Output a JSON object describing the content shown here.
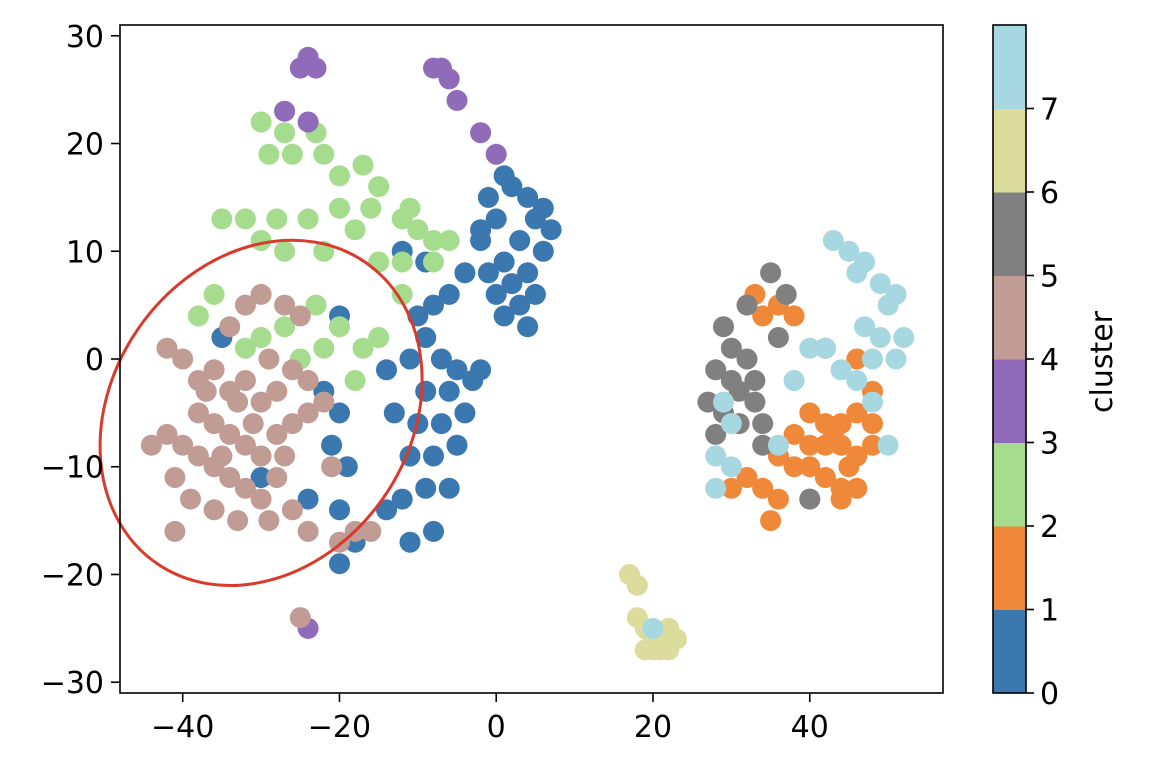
{
  "chart_data": {
    "type": "scatter",
    "xlim": [
      -48,
      57
    ],
    "ylim": [
      -31,
      31
    ],
    "x_ticks": [
      -40,
      -20,
      0,
      20,
      40
    ],
    "y_ticks": [
      -30,
      -20,
      -10,
      0,
      10,
      20,
      30
    ],
    "x_tick_labels": [
      "−40",
      "−20",
      "0",
      "20",
      "40"
    ],
    "y_tick_labels": [
      "−30",
      "−20",
      "−10",
      "0",
      "10",
      "20",
      "30"
    ],
    "grid": false,
    "colorbar": {
      "label": "cluster",
      "range": [
        0,
        8
      ],
      "ticks": [
        0,
        1,
        2,
        3,
        4,
        5,
        6,
        7
      ],
      "tick_labels": [
        "0",
        "1",
        "2",
        "3",
        "4",
        "5",
        "6",
        "7"
      ],
      "colors": [
        "#3a78af",
        "#f0883a",
        "#a5dc8e",
        "#8f6bb9",
        "#c09c94",
        "#808080",
        "#dcdc9c",
        "#a7d8e2"
      ]
    },
    "annotation": {
      "shape": "ellipse",
      "color": "#d93a2b",
      "center": [
        -30,
        -5
      ],
      "radius": [
        19,
        17
      ]
    },
    "series": [
      {
        "cluster": 0,
        "points": [
          [
            -1,
            15
          ],
          [
            2,
            16
          ],
          [
            4,
            15
          ],
          [
            6,
            14
          ],
          [
            7,
            12
          ],
          [
            0,
            13
          ],
          [
            -2,
            12
          ],
          [
            3,
            11
          ],
          [
            6,
            10
          ],
          [
            1,
            9
          ],
          [
            -1,
            8
          ],
          [
            4,
            8
          ],
          [
            2,
            7
          ],
          [
            5,
            6
          ],
          [
            0,
            6
          ],
          [
            3,
            5
          ],
          [
            1,
            4
          ],
          [
            4,
            3
          ],
          [
            -4,
            8
          ],
          [
            -6,
            6
          ],
          [
            -8,
            5
          ],
          [
            -10,
            4
          ],
          [
            -9,
            2
          ],
          [
            -11,
            0
          ],
          [
            -7,
            0
          ],
          [
            -5,
            -1
          ],
          [
            -3,
            -2
          ],
          [
            -6,
            -3
          ],
          [
            -9,
            -3
          ],
          [
            -4,
            -5
          ],
          [
            -7,
            -6
          ],
          [
            -10,
            -6
          ],
          [
            -13,
            -5
          ],
          [
            -5,
            -8
          ],
          [
            -8,
            -9
          ],
          [
            -11,
            -9
          ],
          [
            -6,
            -12
          ],
          [
            -9,
            -12
          ],
          [
            -12,
            -13
          ],
          [
            -8,
            -16
          ],
          [
            -11,
            -17
          ],
          [
            -14,
            -14
          ],
          [
            -21,
            -8
          ],
          [
            -19,
            -10
          ],
          [
            -20,
            -14
          ],
          [
            -18,
            -17
          ],
          [
            -20,
            -19
          ],
          [
            -24,
            -13
          ],
          [
            -22,
            -3
          ],
          [
            -20,
            -5
          ],
          [
            -35,
            2
          ],
          [
            -30,
            -11
          ],
          [
            -20,
            4
          ],
          [
            -12,
            10
          ],
          [
            -9,
            9
          ],
          [
            -2,
            11
          ],
          [
            5,
            13
          ],
          [
            1,
            17
          ],
          [
            -2,
            -1
          ],
          [
            -14,
            -1
          ]
        ]
      },
      {
        "cluster": 1,
        "points": [
          [
            33,
            6
          ],
          [
            36,
            5
          ],
          [
            34,
            4
          ],
          [
            38,
            4
          ],
          [
            40,
            -5
          ],
          [
            42,
            -6
          ],
          [
            44,
            -6
          ],
          [
            46,
            -5
          ],
          [
            48,
            -6
          ],
          [
            38,
            -7
          ],
          [
            40,
            -8
          ],
          [
            42,
            -8
          ],
          [
            44,
            -8
          ],
          [
            46,
            -9
          ],
          [
            48,
            -8
          ],
          [
            36,
            -9
          ],
          [
            38,
            -10
          ],
          [
            40,
            -10
          ],
          [
            42,
            -11
          ],
          [
            44,
            -12
          ],
          [
            46,
            -12
          ],
          [
            34,
            -12
          ],
          [
            36,
            -13
          ],
          [
            40,
            -13
          ],
          [
            44,
            -13
          ],
          [
            30,
            -12
          ],
          [
            32,
            -11
          ],
          [
            35,
            -15
          ],
          [
            46,
            0
          ],
          [
            48,
            -3
          ],
          [
            43,
            -7
          ],
          [
            45,
            -10
          ]
        ]
      },
      {
        "cluster": 2,
        "points": [
          [
            -30,
            22
          ],
          [
            -27,
            21
          ],
          [
            -23,
            21
          ],
          [
            -26,
            19
          ],
          [
            -22,
            19
          ],
          [
            -29,
            19
          ],
          [
            -20,
            17
          ],
          [
            -17,
            18
          ],
          [
            -15,
            16
          ],
          [
            -16,
            14
          ],
          [
            -20,
            14
          ],
          [
            -24,
            13
          ],
          [
            -28,
            13
          ],
          [
            -32,
            13
          ],
          [
            -35,
            13
          ],
          [
            -30,
            11
          ],
          [
            -27,
            10
          ],
          [
            -22,
            10
          ],
          [
            -18,
            12
          ],
          [
            -12,
            13
          ],
          [
            -10,
            12
          ],
          [
            -8,
            11
          ],
          [
            -6,
            11
          ],
          [
            -12,
            9
          ],
          [
            -15,
            9
          ],
          [
            -8,
            9
          ],
          [
            -36,
            6
          ],
          [
            -38,
            4
          ],
          [
            -30,
            2
          ],
          [
            -32,
            1
          ],
          [
            -27,
            3
          ],
          [
            -23,
            5
          ],
          [
            -20,
            3
          ],
          [
            -17,
            1
          ],
          [
            -15,
            2
          ],
          [
            -18,
            -2
          ],
          [
            -25,
            0
          ],
          [
            -22,
            1
          ],
          [
            -12,
            6
          ],
          [
            -11,
            14
          ]
        ]
      },
      {
        "cluster": 3,
        "points": [
          [
            -24,
            28
          ],
          [
            -23,
            27
          ],
          [
            -25,
            27
          ],
          [
            -7,
            27
          ],
          [
            -6,
            26
          ],
          [
            -5,
            24
          ],
          [
            -2,
            21
          ],
          [
            0,
            19
          ],
          [
            -27,
            23
          ],
          [
            -24,
            22
          ],
          [
            -24,
            -25
          ],
          [
            -8,
            27
          ]
        ]
      },
      {
        "cluster": 4,
        "points": [
          [
            -40,
            0
          ],
          [
            -38,
            -2
          ],
          [
            -36,
            -1
          ],
          [
            -34,
            -3
          ],
          [
            -32,
            -2
          ],
          [
            -30,
            -4
          ],
          [
            -28,
            -3
          ],
          [
            -26,
            -1
          ],
          [
            -24,
            -2
          ],
          [
            -38,
            -5
          ],
          [
            -36,
            -6
          ],
          [
            -34,
            -7
          ],
          [
            -32,
            -8
          ],
          [
            -30,
            -9
          ],
          [
            -28,
            -7
          ],
          [
            -26,
            -6
          ],
          [
            -24,
            -5
          ],
          [
            -22,
            -4
          ],
          [
            -40,
            -8
          ],
          [
            -38,
            -9
          ],
          [
            -36,
            -10
          ],
          [
            -34,
            -11
          ],
          [
            -32,
            -12
          ],
          [
            -30,
            -13
          ],
          [
            -28,
            -11
          ],
          [
            -42,
            -7
          ],
          [
            -44,
            -8
          ],
          [
            -41,
            -11
          ],
          [
            -39,
            -13
          ],
          [
            -36,
            -14
          ],
          [
            -33,
            -15
          ],
          [
            -29,
            -15
          ],
          [
            -26,
            -14
          ],
          [
            -41,
            -16
          ],
          [
            -24,
            -16
          ],
          [
            -20,
            -17
          ],
          [
            -18,
            -16
          ],
          [
            -16,
            -16
          ],
          [
            -21,
            -10
          ],
          [
            -34,
            3
          ],
          [
            -32,
            5
          ],
          [
            -30,
            6
          ],
          [
            -27,
            5
          ],
          [
            -25,
            4
          ],
          [
            -33,
            -4
          ],
          [
            -31,
            -6
          ],
          [
            -35,
            -9
          ],
          [
            -37,
            -3
          ],
          [
            -27,
            -9
          ],
          [
            -29,
            0
          ],
          [
            -42,
            1
          ],
          [
            -25,
            -24
          ]
        ]
      },
      {
        "cluster": 5,
        "points": [
          [
            29,
            3
          ],
          [
            32,
            5
          ],
          [
            30,
            1
          ],
          [
            28,
            -1
          ],
          [
            30,
            -2
          ],
          [
            32,
            0
          ],
          [
            31,
            -3
          ],
          [
            29,
            -5
          ],
          [
            27,
            -4
          ],
          [
            33,
            -2
          ],
          [
            33,
            -4
          ],
          [
            31,
            -6
          ],
          [
            34,
            -6
          ],
          [
            28,
            -7
          ],
          [
            35,
            8
          ],
          [
            37,
            6
          ],
          [
            36,
            2
          ],
          [
            42,
            1
          ],
          [
            40,
            -13
          ],
          [
            34,
            -8
          ]
        ]
      },
      {
        "cluster": 6,
        "points": [
          [
            17,
            -20
          ],
          [
            18,
            -21
          ],
          [
            19,
            -25
          ],
          [
            20,
            -26
          ],
          [
            21,
            -26
          ],
          [
            22,
            -25
          ],
          [
            23,
            -26
          ],
          [
            20,
            -27
          ],
          [
            19,
            -27
          ],
          [
            18,
            -24
          ],
          [
            21,
            -27
          ],
          [
            22,
            -27
          ]
        ]
      },
      {
        "cluster": 7,
        "points": [
          [
            43,
            11
          ],
          [
            45,
            10
          ],
          [
            47,
            9
          ],
          [
            46,
            8
          ],
          [
            49,
            7
          ],
          [
            51,
            6
          ],
          [
            50,
            5
          ],
          [
            47,
            3
          ],
          [
            49,
            2
          ],
          [
            52,
            2
          ],
          [
            48,
            0
          ],
          [
            51,
            0
          ],
          [
            46,
            -2
          ],
          [
            44,
            -1
          ],
          [
            40,
            1
          ],
          [
            42,
            1
          ],
          [
            38,
            -2
          ],
          [
            29,
            -4
          ],
          [
            30,
            -6
          ],
          [
            28,
            -9
          ],
          [
            30,
            -10
          ],
          [
            28,
            -12
          ],
          [
            36,
            -8
          ],
          [
            50,
            -8
          ],
          [
            20,
            -25
          ],
          [
            48,
            -4
          ]
        ]
      }
    ]
  }
}
